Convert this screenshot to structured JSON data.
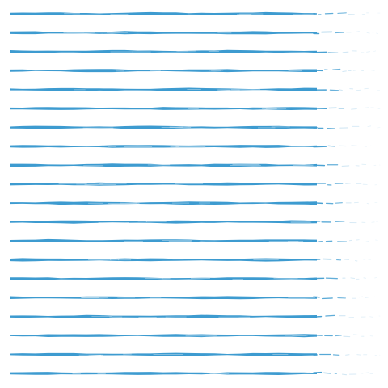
{
  "pattern": {
    "kind": "hand-drawn horizontal brush strokes",
    "stroke_count": 20,
    "stroke_color": "#3d9bd0",
    "fade_color": "#bcdcef",
    "background_color": "#ffffff",
    "stroke_fades_toward": "right"
  }
}
